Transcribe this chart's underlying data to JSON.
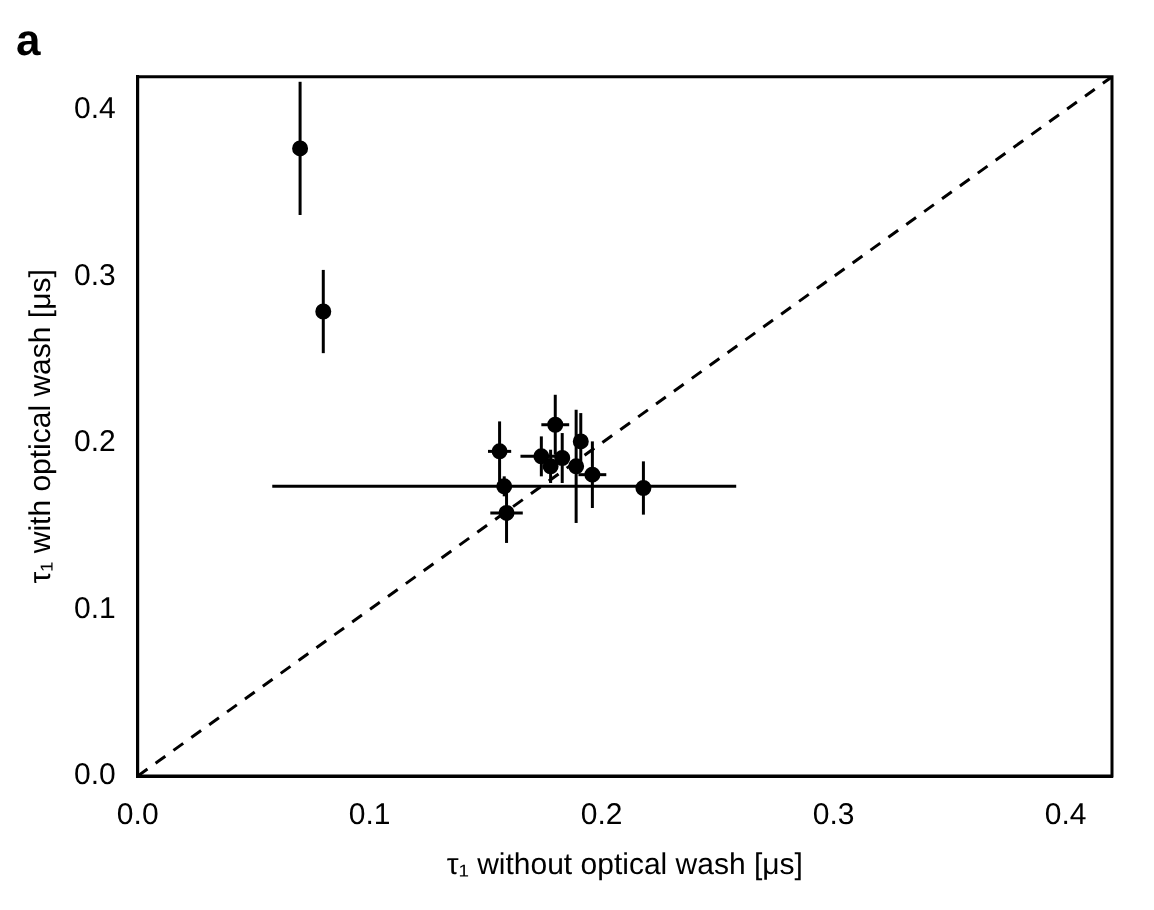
{
  "chart_data": {
    "type": "scatter",
    "title": "a",
    "xlabel": "τ₁ without optical wash [μs]",
    "ylabel": "τ₁ with optical wash [μs]",
    "xlim": [
      0,
      0.42
    ],
    "ylim": [
      0,
      0.42
    ],
    "xticks": [
      {
        "value": 0,
        "label": "0.0"
      },
      0.1,
      0.2,
      0.3,
      0.4
    ],
    "yticks": [
      {
        "value": 0,
        "label": "0.0"
      },
      0.1,
      0.2,
      0.3,
      0.4
    ],
    "grid": false,
    "legend": false,
    "marker": "circle",
    "series": [
      {
        "color": "#000000",
        "x": [
          0.07,
          0.08,
          0.156,
          0.158,
          0.159,
          0.174,
          0.18,
          0.178,
          0.183,
          0.189,
          0.191,
          0.196,
          0.218
        ],
        "values": [
          0.377,
          0.279,
          0.195,
          0.174,
          0.158,
          0.192,
          0.211,
          0.186,
          0.191,
          0.186,
          0.201,
          0.181,
          0.173
        ],
        "errors": [
          0.04,
          0.025,
          0.018,
          0.006,
          0.018,
          0.012,
          0.018,
          0.01,
          0.015,
          0.034,
          0.017,
          0.02,
          0.016
        ],
        "xerrors": [
          null,
          null,
          0.005,
          0.1,
          0.007,
          0.009,
          0.006,
          null,
          null,
          null,
          null,
          0.006,
          null
        ]
      },
      {
        "type": "line",
        "color": "#000000",
        "line_style": "dashed",
        "marker": "none",
        "x": [
          0,
          0.42
        ],
        "values": [
          0,
          0.42
        ]
      }
    ]
  }
}
